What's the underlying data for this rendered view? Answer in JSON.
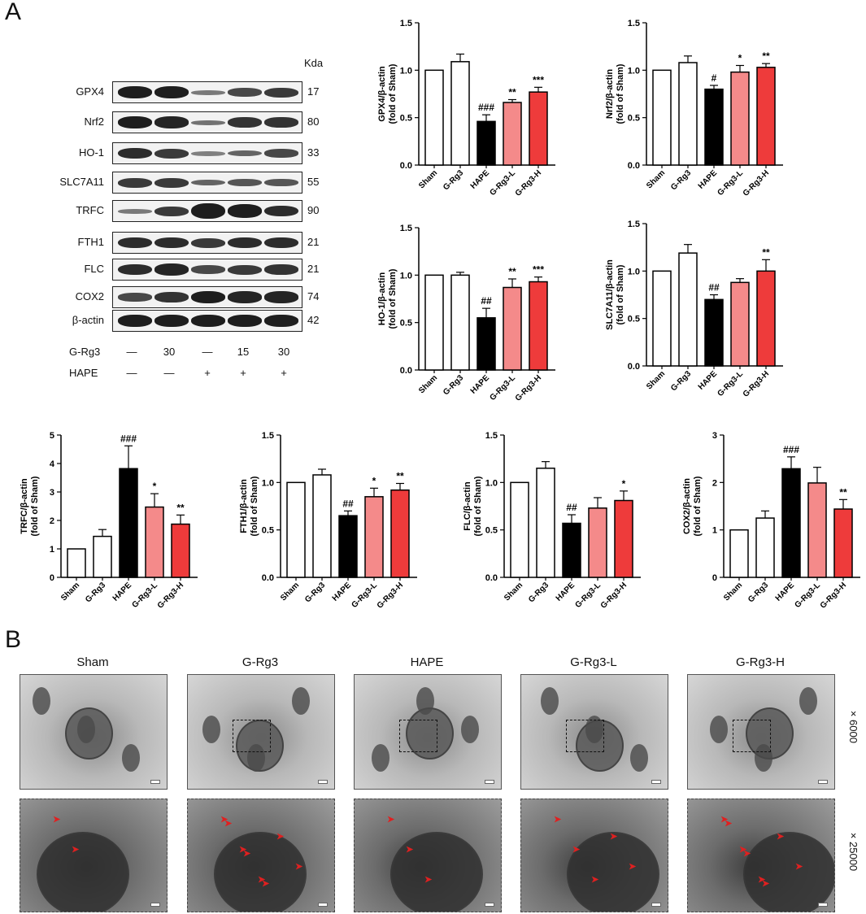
{
  "panels": {
    "a": "A",
    "b": "B"
  },
  "blot": {
    "kda_header": "Kda",
    "rows": [
      {
        "name": "GPX4",
        "kda": "17"
      },
      {
        "name": "Nrf2",
        "kda": "80"
      },
      {
        "name": "HO-1",
        "kda": "33"
      },
      {
        "name": "SLC7A11",
        "kda": "55"
      },
      {
        "name": "TRFC",
        "kda": "90"
      },
      {
        "name": "FTH1",
        "kda": "21"
      },
      {
        "name": "FLC",
        "kda": "21"
      },
      {
        "name": "COX2",
        "kda": "74"
      },
      {
        "name": "β-actin",
        "kda": "42"
      }
    ],
    "treatments": [
      {
        "name": "G-Rg3",
        "values": [
          "—",
          "30",
          "—",
          "15",
          "30"
        ]
      },
      {
        "name": "HAPE",
        "values": [
          "—",
          "—",
          "+",
          "+",
          "+"
        ]
      }
    ]
  },
  "colors": {
    "sham": "#ffffff",
    "grg3": "#ffffff",
    "hape": "#000000",
    "low": "#f48a8a",
    "high": "#ee3b3b"
  },
  "chart_data": [
    {
      "type": "bar",
      "ylabel": "GPX4/β-actin\n(fold of Sham)",
      "categories": [
        "Sham",
        "G-Rg3",
        "HAPE",
        "G-Rg3-L",
        "G-Rg3-H"
      ],
      "values": [
        1.0,
        1.09,
        0.46,
        0.66,
        0.77
      ],
      "errors": [
        0,
        0.08,
        0.07,
        0.03,
        0.05
      ],
      "ylim": [
        0,
        1.5
      ],
      "yticks": [
        "0.0",
        "0.5",
        "1.0",
        "1.5"
      ],
      "annotations": [
        "",
        "",
        "###",
        "**",
        "***"
      ]
    },
    {
      "type": "bar",
      "ylabel": "Nrf2/β-actin\n(fold of Sham)",
      "categories": [
        "Sham",
        "G-Rg3",
        "HAPE",
        "G-Rg3-L",
        "G-Rg3-H"
      ],
      "values": [
        1.0,
        1.08,
        0.8,
        0.98,
        1.03
      ],
      "errors": [
        0,
        0.07,
        0.04,
        0.07,
        0.04
      ],
      "ylim": [
        0,
        1.5
      ],
      "yticks": [
        "0.0",
        "0.5",
        "1.0",
        "1.5"
      ],
      "annotations": [
        "",
        "",
        "#",
        "*",
        "**"
      ]
    },
    {
      "type": "bar",
      "ylabel": "HO-1/β-actin\n(fold of Sham)",
      "categories": [
        "Sham",
        "G-Rg3",
        "HAPE",
        "G-Rg3-L",
        "G-Rg3-H"
      ],
      "values": [
        1.0,
        1.0,
        0.55,
        0.87,
        0.93
      ],
      "errors": [
        0,
        0.03,
        0.1,
        0.09,
        0.05
      ],
      "ylim": [
        0,
        1.5
      ],
      "yticks": [
        "0.0",
        "0.5",
        "1.0",
        "1.5"
      ],
      "annotations": [
        "",
        "",
        "##",
        "**",
        "***"
      ]
    },
    {
      "type": "bar",
      "ylabel": "SLC7A11/β-actin\n(fold of Sham)",
      "categories": [
        "Sham",
        "G-Rg3",
        "HAPE",
        "G-Rg3-L",
        "G-Rg3-H"
      ],
      "values": [
        1.0,
        1.19,
        0.7,
        0.88,
        1.0
      ],
      "errors": [
        0,
        0.09,
        0.05,
        0.04,
        0.12
      ],
      "ylim": [
        0,
        1.5
      ],
      "yticks": [
        "0.0",
        "0.5",
        "1.0",
        "1.5"
      ],
      "annotations": [
        "",
        "",
        "##",
        "",
        "**"
      ]
    },
    {
      "type": "bar",
      "ylabel": "TRFC/β-actin\n(fold of Sham)",
      "categories": [
        "Sham",
        "G-Rg3",
        "HAPE",
        "G-Rg3-L",
        "G-Rg3-H"
      ],
      "values": [
        1.0,
        1.44,
        3.82,
        2.47,
        1.87
      ],
      "errors": [
        0,
        0.24,
        0.8,
        0.47,
        0.32
      ],
      "ylim": [
        0,
        5
      ],
      "yticks": [
        "0",
        "1",
        "2",
        "3",
        "4",
        "5"
      ],
      "annotations": [
        "",
        "",
        "###",
        "*",
        "**"
      ]
    },
    {
      "type": "bar",
      "ylabel": "FTH1/β-actin\n(fold of Sham)",
      "categories": [
        "Sham",
        "G-Rg3",
        "HAPE",
        "G-Rg3-L",
        "G-Rg3-H"
      ],
      "values": [
        1.0,
        1.08,
        0.65,
        0.85,
        0.92
      ],
      "errors": [
        0,
        0.06,
        0.05,
        0.09,
        0.07
      ],
      "ylim": [
        0,
        1.5
      ],
      "yticks": [
        "0.0",
        "0.5",
        "1.0",
        "1.5"
      ],
      "annotations": [
        "",
        "",
        "##",
        "*",
        "**"
      ]
    },
    {
      "type": "bar",
      "ylabel": "FLC/β-actin\n(fold of Sham)",
      "categories": [
        "Sham",
        "G-Rg3",
        "HAPE",
        "G-Rg3-L",
        "G-Rg3-H"
      ],
      "values": [
        1.0,
        1.15,
        0.57,
        0.73,
        0.81
      ],
      "errors": [
        0,
        0.07,
        0.09,
        0.11,
        0.1
      ],
      "ylim": [
        0,
        1.5
      ],
      "yticks": [
        "0.0",
        "0.5",
        "1.0",
        "1.5"
      ],
      "annotations": [
        "",
        "",
        "##",
        "",
        "*"
      ]
    },
    {
      "type": "bar",
      "ylabel": "COX2/β-actin\n(fold of Sham)",
      "categories": [
        "Sham",
        "G-Rg3",
        "HAPE",
        "G-Rg3-L",
        "G-Rg3-H"
      ],
      "values": [
        1.0,
        1.25,
        2.29,
        1.99,
        1.44
      ],
      "errors": [
        0,
        0.15,
        0.25,
        0.33,
        0.2
      ],
      "ylim": [
        0,
        3
      ],
      "yticks": [
        "0",
        "1",
        "2",
        "3"
      ],
      "annotations": [
        "",
        "",
        "###",
        "",
        "**"
      ]
    }
  ],
  "em": {
    "groups": [
      "Sham",
      "G-Rg3",
      "HAPE",
      "G-Rg3-L",
      "G-Rg3-H"
    ],
    "magnifications": [
      "×6000",
      "×25000"
    ]
  }
}
